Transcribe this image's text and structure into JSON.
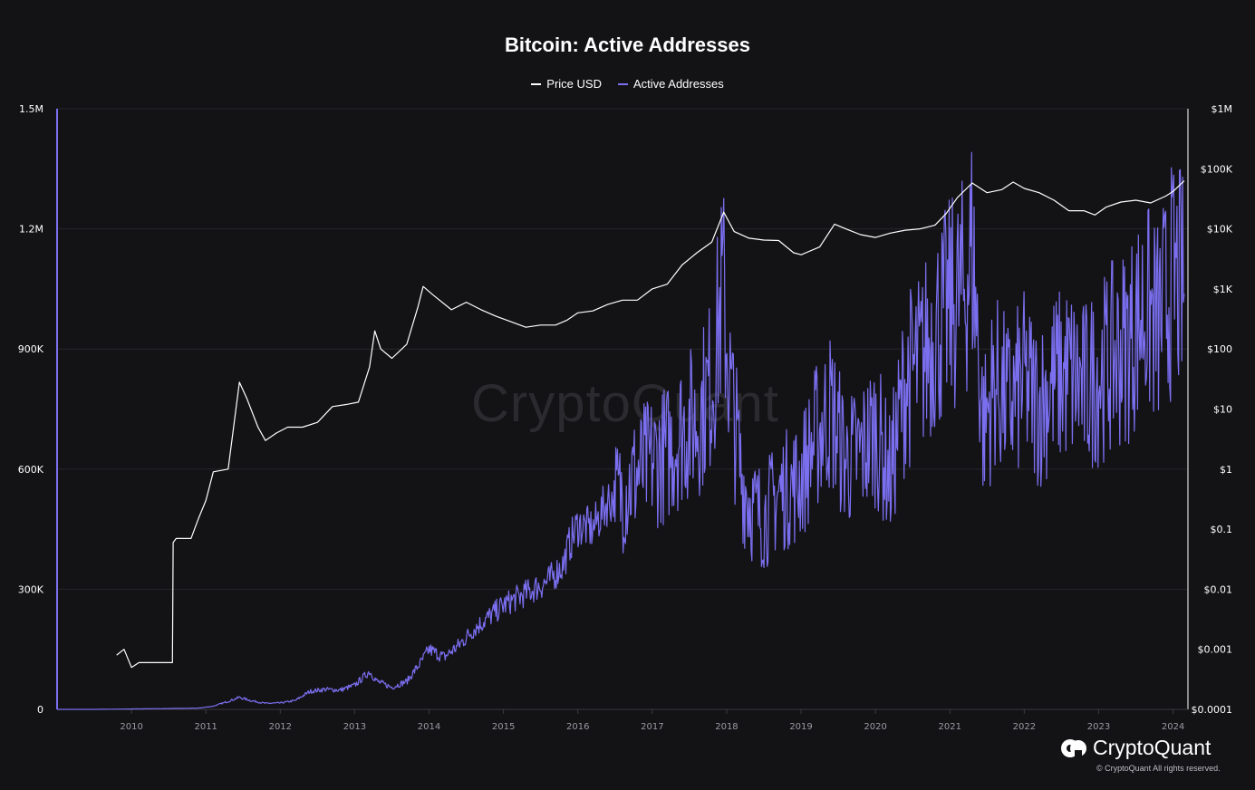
{
  "title": "Bitcoin: Active Addresses",
  "legend": [
    {
      "label": "Price USD",
      "color": "#ffffff"
    },
    {
      "label": "Active Addresses",
      "color": "#7b6ff0"
    }
  ],
  "watermark": "CryptoQuant",
  "brand": {
    "name": "CryptoQuant",
    "copyright": "© CryptoQuant All rights reserved."
  },
  "chart_data": {
    "type": "line",
    "title": "Bitcoin: Active Addresses",
    "x_ticks": [
      "2010",
      "2011",
      "2012",
      "2013",
      "2014",
      "2015",
      "2016",
      "2017",
      "2018",
      "2019",
      "2020",
      "2021",
      "2022",
      "2023",
      "2024"
    ],
    "x_range": [
      2009.0,
      2024.2
    ],
    "left_axis": {
      "ticks": [
        "0",
        "300K",
        "600K",
        "900K",
        "1.2M",
        "1.5M"
      ],
      "ylim": [
        0,
        1500000
      ]
    },
    "right_axis": {
      "scale": "log",
      "ticks": [
        "$0.0001",
        "$0.001",
        "$0.01",
        "$0.1",
        "$1",
        "$10",
        "$100",
        "$1K",
        "$10K",
        "$100K",
        "$1M"
      ],
      "ylim": [
        0.0001,
        1000000
      ]
    },
    "grid": true,
    "legend_position": "top-center",
    "series": [
      {
        "name": "Active Addresses",
        "axis": "left",
        "color": "#7b6ff0",
        "x": [
          2009.0,
          2009.5,
          2010.0,
          2010.5,
          2010.9,
          2011.1,
          2011.3,
          2011.45,
          2011.6,
          2011.8,
          2012.0,
          2012.2,
          2012.4,
          2012.6,
          2012.8,
          2013.0,
          2013.2,
          2013.3,
          2013.5,
          2013.7,
          2013.9,
          2014.0,
          2014.2,
          2014.4,
          2014.6,
          2014.8,
          2015.0,
          2015.2,
          2015.4,
          2015.6,
          2015.8,
          2015.9,
          2016.0,
          2016.2,
          2016.4,
          2016.6,
          2016.8,
          2017.0,
          2017.2,
          2017.4,
          2017.6,
          2017.8,
          2017.95,
          2018.05,
          2018.2,
          2018.35,
          2018.5,
          2018.7,
          2018.9,
          2019.0,
          2019.2,
          2019.4,
          2019.6,
          2019.8,
          2020.0,
          2020.2,
          2020.4,
          2020.6,
          2020.8,
          2021.0,
          2021.2,
          2021.3,
          2021.45,
          2021.6,
          2021.8,
          2022.0,
          2022.2,
          2022.4,
          2022.6,
          2022.8,
          2023.0,
          2023.2,
          2023.4,
          2023.6,
          2023.8,
          2024.0,
          2024.15
        ],
        "y": [
          0,
          0,
          1000,
          2000,
          3000,
          8000,
          20000,
          30000,
          22000,
          15000,
          16000,
          22000,
          45000,
          50000,
          48000,
          60000,
          95000,
          70000,
          55000,
          70000,
          120000,
          150000,
          130000,
          160000,
          200000,
          230000,
          260000,
          280000,
          300000,
          320000,
          360000,
          420000,
          460000,
          450000,
          520000,
          540000,
          590000,
          620000,
          640000,
          700000,
          720000,
          820000,
          1050000,
          800000,
          580000,
          500000,
          480000,
          540000,
          560000,
          580000,
          680000,
          750000,
          620000,
          640000,
          700000,
          580000,
          820000,
          860000,
          950000,
          1000000,
          1050000,
          1150000,
          700000,
          820000,
          760000,
          820000,
          760000,
          820000,
          840000,
          800000,
          840000,
          880000,
          920000,
          1000000,
          960000,
          1080000,
          1050000
        ]
      },
      {
        "name": "Price USD",
        "axis": "right",
        "color": "#ffffff",
        "x": [
          2009.8,
          2009.9,
          2010.0,
          2010.1,
          2010.55,
          2010.56,
          2010.6,
          2010.8,
          2010.9,
          2011.0,
          2011.1,
          2011.3,
          2011.45,
          2011.55,
          2011.7,
          2011.8,
          2011.95,
          2012.1,
          2012.3,
          2012.5,
          2012.7,
          2012.9,
          2013.05,
          2013.2,
          2013.27,
          2013.35,
          2013.5,
          2013.7,
          2013.85,
          2013.92,
          2014.05,
          2014.3,
          2014.5,
          2014.7,
          2014.9,
          2015.05,
          2015.3,
          2015.5,
          2015.7,
          2015.85,
          2016.0,
          2016.2,
          2016.4,
          2016.6,
          2016.8,
          2017.0,
          2017.2,
          2017.4,
          2017.6,
          2017.8,
          2017.96,
          2018.1,
          2018.3,
          2018.5,
          2018.7,
          2018.9,
          2019.0,
          2019.25,
          2019.45,
          2019.6,
          2019.8,
          2020.0,
          2020.2,
          2020.4,
          2020.6,
          2020.8,
          2020.95,
          2021.1,
          2021.3,
          2021.5,
          2021.7,
          2021.85,
          2022.0,
          2022.2,
          2022.4,
          2022.6,
          2022.8,
          2022.95,
          2023.1,
          2023.3,
          2023.5,
          2023.7,
          2023.9,
          2024.0,
          2024.15
        ],
        "y": [
          0.0008,
          0.001,
          0.0005,
          0.0006,
          0.0006,
          0.06,
          0.07,
          0.07,
          0.15,
          0.3,
          0.9,
          1.0,
          28,
          15,
          5,
          3,
          4,
          5,
          5,
          6,
          11,
          12,
          13,
          50,
          200,
          100,
          70,
          120,
          500,
          1100,
          800,
          450,
          600,
          450,
          350,
          300,
          230,
          250,
          250,
          300,
          400,
          430,
          550,
          650,
          650,
          1000,
          1200,
          2500,
          4000,
          6000,
          19000,
          9000,
          7000,
          6500,
          6400,
          4000,
          3700,
          5000,
          12000,
          10000,
          8000,
          7200,
          8500,
          9500,
          10000,
          11500,
          18000,
          33000,
          58000,
          40000,
          45000,
          60000,
          47000,
          40000,
          30000,
          20000,
          20000,
          17000,
          23000,
          28000,
          30000,
          27000,
          35000,
          42000,
          63000
        ]
      }
    ]
  }
}
